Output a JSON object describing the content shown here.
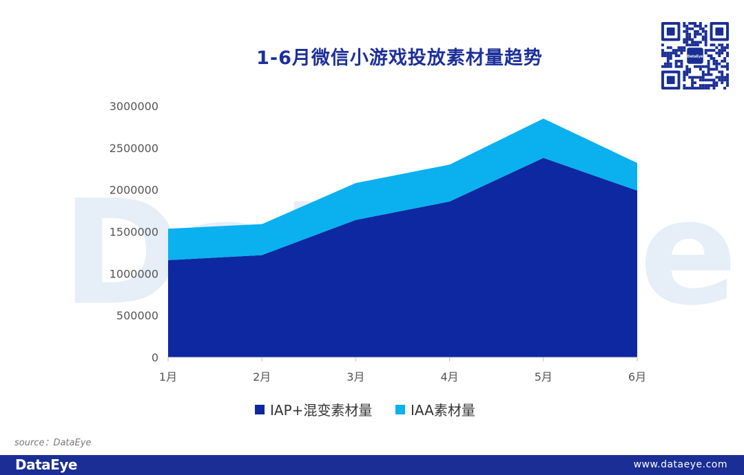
{
  "chart_data": {
    "type": "area",
    "stacked": true,
    "title": "1-6月微信小游戏投放素材量趋势",
    "categories": [
      "1月",
      "2月",
      "3月",
      "4月",
      "5月",
      "6月"
    ],
    "series": [
      {
        "name": "IAP+混变素材量",
        "color": "#0d28a0",
        "values": [
          1160000,
          1220000,
          1640000,
          1860000,
          2380000,
          1990000
        ]
      },
      {
        "name": "IAA素材量",
        "color": "#0ab1ee",
        "values": [
          375000,
          370000,
          440000,
          440000,
          470000,
          330000
        ]
      }
    ],
    "yticks": [
      "0",
      "500000",
      "1000000",
      "1500000",
      "2000000",
      "2500000",
      "3000000"
    ],
    "ylim": [
      0,
      3000000
    ],
    "legend_position": "bottom",
    "grid": false
  },
  "watermark": "DataEye",
  "qr_badge": "DataEye",
  "source": "source：DataEye",
  "footer": {
    "brand": "DataEye",
    "website": "www.dataeye.com"
  }
}
